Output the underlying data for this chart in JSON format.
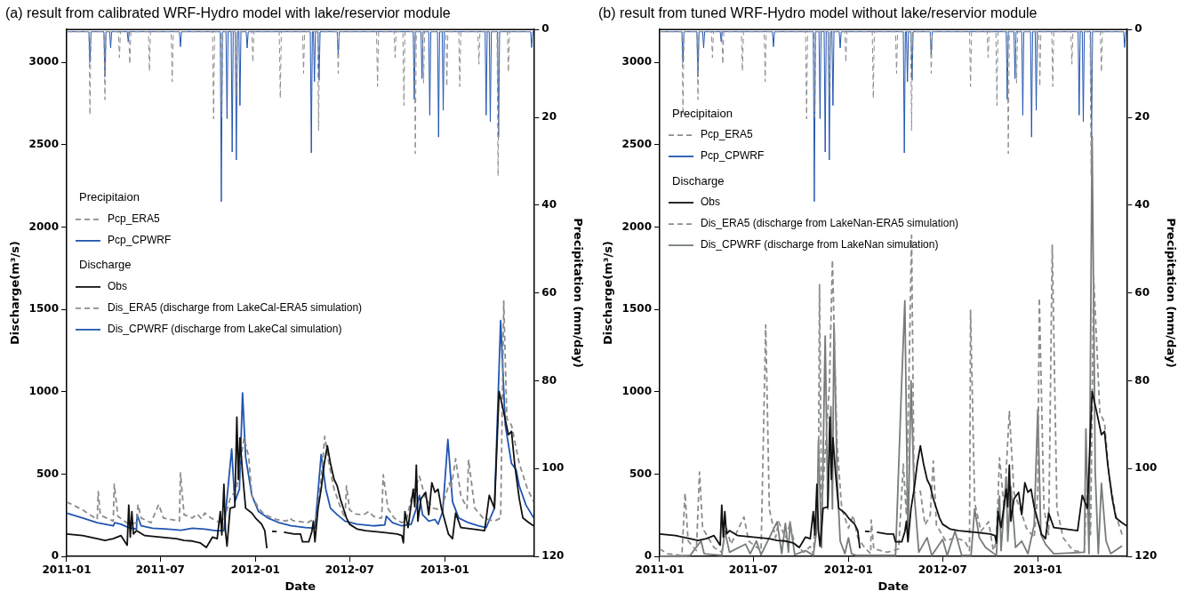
{
  "chart_data": [
    {
      "type": "line",
      "title": "(a) result from calibrated WRF-Hydro model with lake/reservior module",
      "xlabel": "Date",
      "ylabel": "Discharge(m³/s)",
      "y2label": "Precipitation (mm/day)",
      "legend": "left",
      "annotations": [
        "Precipitaion",
        "Discharge"
      ],
      "xlim": [
        "2011-01-01",
        "2013-06-22"
      ],
      "xticks": [
        "2011-01",
        "2011-07",
        "2012-01",
        "2012-07",
        "2013-01"
      ],
      "ylim": [
        0,
        3200
      ],
      "yticks": [
        0,
        500,
        1000,
        1500,
        2000,
        2500,
        3000
      ],
      "y2lim": [
        120,
        0
      ],
      "y2ticks": [
        0,
        20,
        40,
        60,
        80,
        100,
        120
      ],
      "series": [
        {
          "name": "Pcp_ERA5",
          "color": "#8c8c8c",
          "line_style": "dashed",
          "axis": "y2",
          "x": [
            "2011-01-01",
            "2011-02-13",
            "2011-02-15",
            "2011-02-17",
            "2011-03-14",
            "2011-03-16",
            "2011-03-18",
            "2011-04-11",
            "2011-04-13",
            "2011-04-15",
            "2011-05-01",
            "2011-05-03",
            "2011-05-05",
            "2011-06-08",
            "2011-06-10",
            "2011-06-12",
            "2011-07-22",
            "2011-07-24",
            "2011-07-26",
            "2011-10-10",
            "2011-10-12",
            "2011-10-14",
            "2011-10-26",
            "2011-10-28",
            "2011-10-30",
            "2011-11-23",
            "2011-11-25",
            "2011-11-27",
            "2011-12-25",
            "2011-12-27",
            "2011-12-29",
            "2012-02-16",
            "2012-02-18",
            "2012-02-20",
            "2012-04-01",
            "2012-04-03",
            "2012-04-05",
            "2012-04-30",
            "2012-05-02",
            "2012-05-04",
            "2012-06-07",
            "2012-06-09",
            "2012-06-11",
            "2012-08-22",
            "2012-08-24",
            "2012-08-26",
            "2012-09-25",
            "2012-09-27",
            "2012-09-29",
            "2012-10-12",
            "2012-10-14",
            "2012-10-16",
            "2012-11-03",
            "2012-11-05",
            "2012-11-07",
            "2012-11-19",
            "2012-11-21",
            "2012-11-23",
            "2013-01-03",
            "2013-01-05",
            "2013-01-07",
            "2013-01-28",
            "2013-01-30",
            "2013-02-01",
            "2013-03-06",
            "2013-03-08",
            "2013-03-10",
            "2013-04-12",
            "2013-04-14",
            "2013-04-16",
            "2013-05-02",
            "2013-05-04",
            "2013-05-06",
            "2013-06-22"
          ],
          "values": [
            0.5,
            0.5,
            19.5,
            0.5,
            0.5,
            16,
            0.5,
            0.5,
            6.4,
            0.5,
            0.5,
            7.9,
            0.5,
            0.5,
            9.5,
            0.5,
            0.5,
            11.9,
            0.5,
            0.5,
            20.4,
            0.5,
            0.5,
            20,
            0.5,
            0.5,
            15,
            0.5,
            0.5,
            7.5,
            0.5,
            0.5,
            15.7,
            0.5,
            0.5,
            10,
            0.5,
            0.5,
            23,
            0.5,
            0.5,
            10,
            0.5,
            0.5,
            13,
            0.5,
            0.5,
            6.4,
            0.5,
            0.5,
            17.3,
            0.5,
            0.5,
            28.3,
            0.5,
            0.5,
            12.2,
            0.5,
            0.5,
            13,
            0.5,
            0.5,
            13,
            0.5,
            0.5,
            7.9,
            0.5,
            0.5,
            33.4,
            0.5,
            0.5,
            9.7,
            0.5,
            0.5
          ]
        },
        {
          "name": "Pcp_CPWRF",
          "color": "#2155b0",
          "line_style": "solid",
          "axis": "y2",
          "x": [
            "2011-01-01",
            "2011-02-13",
            "2011-02-15",
            "2011-02-17",
            "2011-03-14",
            "2011-03-16",
            "2011-03-18",
            "2011-03-25",
            "2011-03-27",
            "2011-03-29",
            "2011-04-28",
            "2011-04-30",
            "2011-05-02",
            "2011-08-07",
            "2011-08-09",
            "2011-08-11",
            "2011-10-25",
            "2011-10-27",
            "2011-10-29",
            "2011-11-05",
            "2011-11-07",
            "2011-11-09",
            "2011-11-15",
            "2011-11-17",
            "2011-11-19",
            "2011-11-23",
            "2011-11-25",
            "2011-11-27",
            "2011-11-30",
            "2011-12-02",
            "2011-12-04",
            "2011-12-14",
            "2011-12-16",
            "2011-12-18",
            "2012-04-16",
            "2012-04-18",
            "2012-04-20",
            "2012-04-22",
            "2012-04-24",
            "2012-04-26",
            "2012-05-01",
            "2012-05-03",
            "2012-05-05",
            "2012-06-07",
            "2012-06-09",
            "2012-06-11",
            "2012-11-01",
            "2012-11-03",
            "2012-11-05",
            "2012-11-16",
            "2012-11-18",
            "2012-11-20",
            "2012-12-01",
            "2012-12-03",
            "2012-12-05",
            "2012-12-18",
            "2012-12-20",
            "2012-12-22",
            "2012-12-27",
            "2012-12-29",
            "2012-12-31",
            "2013-03-20",
            "2013-03-22",
            "2013-03-24",
            "2013-03-28",
            "2013-03-30",
            "2013-04-01",
            "2013-04-13",
            "2013-04-15",
            "2013-04-17",
            "2013-06-16",
            "2013-06-18",
            "2013-06-20",
            "2013-06-22"
          ],
          "values": [
            0.5,
            0.5,
            7.5,
            0.5,
            0.5,
            10.8,
            0.5,
            0.5,
            4.2,
            0.5,
            0.5,
            2.8,
            0.5,
            0.5,
            3.9,
            0.5,
            0.5,
            39.2,
            0.5,
            0.5,
            20.3,
            0.5,
            0.5,
            27.9,
            0.5,
            0.5,
            29.7,
            0.5,
            0.5,
            17.3,
            0.5,
            0.5,
            4.2,
            0.5,
            0.5,
            28.1,
            0.5,
            0.5,
            11.9,
            0.5,
            0.5,
            11.5,
            0.5,
            0.5,
            5.7,
            0.5,
            0.5,
            15.9,
            0.5,
            0.5,
            11.2,
            0.5,
            0.5,
            19.5,
            0.5,
            0.5,
            24.5,
            0.5,
            0.5,
            18.4,
            0.5,
            0.5,
            19.5,
            0.5,
            0.5,
            21,
            0.5,
            0.5,
            24.5,
            0.5,
            0.5,
            4.1,
            0.5,
            0.5
          ]
        },
        {
          "name": "Obs",
          "color": "#111111",
          "line_style": "solid",
          "axis": "y",
          "x": [
            "2011-01-01",
            "2011-02-01",
            "2011-03-01",
            "2011-03-16",
            "2011-04-01",
            "2011-04-16",
            "2011-04-28",
            "2011-05-01",
            "2011-05-04",
            "2011-05-07",
            "2011-05-10",
            "2011-05-16",
            "2011-06-01",
            "2011-07-01",
            "2011-08-01",
            "2011-08-16",
            "2011-09-01",
            "2011-09-16",
            "2011-09-28",
            "2011-10-10",
            "2011-10-19",
            "2011-10-25",
            "2011-10-28",
            "2011-11-01",
            "2011-11-04",
            "2011-11-07",
            "2011-11-13",
            "2011-11-22",
            "2011-11-26",
            "2011-11-29",
            "2011-12-02",
            "2011-12-07",
            "2011-12-13",
            "2011-12-25",
            "2012-01-01",
            "2012-01-13",
            "2012-01-19",
            "2012-01-23",
            "2012-02-01",
            "2012-02-02",
            "2012-02-11",
            "2012-02-15",
            "2012-02-25",
            "2012-03-16",
            "2012-03-28",
            "2012-04-01",
            "2012-04-13",
            "2012-04-19",
            "2012-04-22",
            "2012-04-25",
            "2012-05-01",
            "2012-05-07",
            "2012-05-13",
            "2012-05-19",
            "2012-05-25",
            "2012-06-01",
            "2012-06-07",
            "2012-06-13",
            "2012-06-19",
            "2012-06-25",
            "2012-07-01",
            "2012-07-16",
            "2012-08-01",
            "2012-09-01",
            "2012-10-01",
            "2012-10-10",
            "2012-10-13",
            "2012-10-16",
            "2012-10-22",
            "2012-11-01",
            "2012-11-04",
            "2012-11-07",
            "2012-11-10",
            "2012-11-16",
            "2012-11-25",
            "2012-12-01",
            "2012-12-07",
            "2012-12-13",
            "2012-12-19",
            "2012-12-25",
            "2013-01-08",
            "2013-01-16",
            "2013-01-22",
            "2013-02-01",
            "2013-02-25",
            "2013-03-19",
            "2013-03-28",
            "2013-04-07",
            "2013-04-16",
            "2013-04-25",
            "2013-05-04",
            "2013-05-10",
            "2013-05-16",
            "2013-05-25",
            "2013-06-01",
            "2013-06-13",
            "2013-06-22"
          ],
          "values": [
            136,
            126,
            107,
            97,
            107,
            126,
            68,
            311,
            117,
            272,
            136,
            156,
            126,
            117,
            107,
            97,
            93,
            82,
            54,
            117,
            107,
            272,
            130,
            438,
            150,
            62,
            292,
            300,
            846,
            467,
            720,
            506,
            292,
            263,
            233,
            195,
            156,
            49,
            null,
            152,
            150,
            null,
            146,
            136,
            136,
            88,
            88,
            150,
            214,
            88,
            292,
            408,
            564,
            671,
            564,
            467,
            428,
            350,
            292,
            233,
            195,
            165,
            156,
            146,
            136,
            126,
            82,
            272,
            175,
            408,
            300,
            554,
            214,
            350,
            389,
            253,
            447,
            389,
            408,
            300,
            136,
            107,
            263,
            175,
            165,
            156,
            370,
            292,
            1002,
            875,
            739,
            759,
            564,
            350,
            233,
            204,
            185
          ]
        },
        {
          "name": "Dis_ERA5 (discharge from LakeCal-ERA5 simulation)",
          "color": "#8c8c8c",
          "line_style": "dashed",
          "axis": "y",
          "x": [
            "2011-01-01",
            "2011-02-01",
            "2011-03-01",
            "2011-03-03",
            "2011-03-07",
            "2011-04-01",
            "2011-04-03",
            "2011-04-10",
            "2011-05-01",
            "2011-05-16",
            "2011-05-19",
            "2011-05-25",
            "2011-06-13",
            "2011-06-28",
            "2011-07-07",
            "2011-08-07",
            "2011-08-09",
            "2011-08-16",
            "2011-09-01",
            "2011-09-10",
            "2011-09-19",
            "2011-09-25",
            "2011-10-07",
            "2011-10-25",
            "2011-11-01",
            "2011-11-13",
            "2011-11-25",
            "2011-12-10",
            "2011-12-19",
            "2011-12-25",
            "2012-01-07",
            "2012-01-19",
            "2012-02-10",
            "2012-03-01",
            "2012-03-07",
            "2012-03-13",
            "2012-04-10",
            "2012-04-28",
            "2012-05-07",
            "2012-05-14",
            "2012-05-22",
            "2012-06-01",
            "2012-06-13",
            "2012-06-22",
            "2012-06-25",
            "2012-07-01",
            "2012-07-13",
            "2012-07-28",
            "2012-08-07",
            "2012-08-16",
            "2012-08-28",
            "2012-09-01",
            "2012-09-04",
            "2012-09-13",
            "2012-09-25",
            "2012-10-10",
            "2012-10-19",
            "2012-10-28",
            "2012-11-13",
            "2012-11-25",
            "2012-12-10",
            "2012-12-25",
            "2013-01-10",
            "2013-01-13",
            "2013-01-22",
            "2013-02-01",
            "2013-02-13",
            "2013-02-16",
            "2013-02-28",
            "2013-03-16",
            "2013-04-07",
            "2013-04-19",
            "2013-04-25",
            "2013-05-01",
            "2013-05-10",
            "2013-05-25",
            "2013-06-10",
            "2013-06-22"
          ],
          "values": [
            331,
            282,
            224,
            393,
            250,
            214,
            438,
            243,
            195,
            204,
            315,
            233,
            204,
            315,
            233,
            214,
            506,
            253,
            233,
            257,
            228,
            263,
            233,
            204,
            214,
            350,
            408,
            720,
            603,
            370,
            292,
            253,
            224,
            214,
            233,
            218,
            204,
            233,
            467,
            729,
            564,
            408,
            301,
            233,
            428,
            282,
            257,
            253,
            272,
            243,
            233,
            233,
            496,
            292,
            233,
            204,
            224,
            350,
            486,
            350,
            292,
            282,
            447,
            408,
            593,
            370,
            292,
            587,
            292,
            233,
            214,
            233,
            1551,
            836,
            797,
            564,
            408,
            331
          ]
        },
        {
          "name": "Dis_CPWRF (discharge from LakeCal simulation)",
          "color": "#2155b0",
          "line_style": "solid",
          "axis": "y",
          "x": [
            "2011-01-01",
            "2011-02-01",
            "2011-03-01",
            "2011-04-01",
            "2011-04-04",
            "2011-04-16",
            "2011-05-01",
            "2011-05-16",
            "2011-05-17",
            "2011-05-25",
            "2011-06-16",
            "2011-07-16",
            "2011-08-10",
            "2011-09-01",
            "2011-09-25",
            "2011-10-16",
            "2011-11-01",
            "2011-11-16",
            "2011-11-22",
            "2011-12-01",
            "2011-12-07",
            "2011-12-13",
            "2011-12-25",
            "2012-01-07",
            "2012-01-25",
            "2012-02-16",
            "2012-03-10",
            "2012-04-07",
            "2012-04-25",
            "2012-05-07",
            "2012-05-16",
            "2012-05-25",
            "2012-06-07",
            "2012-06-22",
            "2012-07-16",
            "2012-08-16",
            "2012-09-07",
            "2012-09-10",
            "2012-09-22",
            "2012-10-10",
            "2012-10-28",
            "2012-11-07",
            "2012-11-13",
            "2012-11-19",
            "2012-12-01",
            "2012-12-13",
            "2012-12-19",
            "2012-12-28",
            "2013-01-07",
            "2013-01-16",
            "2013-01-28",
            "2013-02-16",
            "2013-03-07",
            "2013-03-22",
            "2013-04-07",
            "2013-04-19",
            "2013-04-28",
            "2013-05-10",
            "2013-05-19",
            "2013-05-25",
            "2013-06-07",
            "2013-06-22"
          ],
          "values": [
            263,
            233,
            204,
            185,
            204,
            195,
            175,
            165,
            253,
            185,
            171,
            165,
            159,
            171,
            165,
            156,
            156,
            652,
            331,
            408,
            992,
            603,
            370,
            272,
            233,
            204,
            185,
            175,
            171,
            618,
            408,
            292,
            253,
            214,
            195,
            185,
            191,
            243,
            204,
            185,
            195,
            292,
            370,
            253,
            214,
            224,
            195,
            272,
            710,
            331,
            233,
            204,
            185,
            175,
            292,
            1432,
            797,
            564,
            525,
            428,
            311,
            233
          ]
        }
      ]
    },
    {
      "type": "line",
      "title": "(b) result from tuned WRF-Hydro model without lake/reservior module",
      "xlabel": "Date",
      "ylabel": "Discharge(m³/s)",
      "y2label": "Precipitation (mm/day)",
      "legend": "top left",
      "annotations": [
        "Precipitaion",
        "Discharge"
      ],
      "xlim": [
        "2011-01-01",
        "2013-06-22"
      ],
      "xticks": [
        "2011-01",
        "2011-07",
        "2012-01",
        "2012-07",
        "2013-01"
      ],
      "ylim": [
        0,
        3200
      ],
      "yticks": [
        0,
        500,
        1000,
        1500,
        2000,
        2500,
        3000
      ],
      "y2lim": [
        120,
        0
      ],
      "y2ticks": [
        0,
        20,
        40,
        60,
        80,
        100,
        120
      ],
      "series": [
        {
          "name": "Pcp_ERA5",
          "color": "#8c8c8c",
          "line_style": "dashed",
          "axis": "y2",
          "x": [
            "2011-01-01",
            "2011-02-13",
            "2011-02-15",
            "2011-02-17",
            "2011-03-14",
            "2011-03-16",
            "2011-03-18",
            "2011-04-11",
            "2011-04-13",
            "2011-04-15",
            "2011-05-01",
            "2011-05-03",
            "2011-05-05",
            "2011-06-08",
            "2011-06-10",
            "2011-06-12",
            "2011-07-22",
            "2011-07-24",
            "2011-07-26",
            "2011-10-10",
            "2011-10-12",
            "2011-10-14",
            "2011-10-26",
            "2011-10-28",
            "2011-10-30",
            "2011-11-23",
            "2011-11-25",
            "2011-11-27",
            "2011-12-25",
            "2011-12-27",
            "2011-12-29",
            "2012-02-16",
            "2012-02-18",
            "2012-02-20",
            "2012-04-01",
            "2012-04-03",
            "2012-04-05",
            "2012-04-30",
            "2012-05-02",
            "2012-05-04",
            "2012-06-07",
            "2012-06-09",
            "2012-06-11",
            "2012-08-22",
            "2012-08-24",
            "2012-08-26",
            "2012-09-25",
            "2012-09-27",
            "2012-09-29",
            "2012-10-12",
            "2012-10-14",
            "2012-10-16",
            "2012-11-03",
            "2012-11-05",
            "2012-11-07",
            "2012-11-19",
            "2012-11-21",
            "2012-11-23",
            "2013-01-03",
            "2013-01-05",
            "2013-01-07",
            "2013-01-28",
            "2013-01-30",
            "2013-02-01",
            "2013-03-06",
            "2013-03-08",
            "2013-03-10",
            "2013-04-12",
            "2013-04-14",
            "2013-04-16",
            "2013-05-02",
            "2013-05-04",
            "2013-05-06",
            "2013-06-22"
          ],
          "values": [
            0.5,
            0.5,
            19.5,
            0.5,
            0.5,
            16,
            0.5,
            0.5,
            6.4,
            0.5,
            0.5,
            7.9,
            0.5,
            0.5,
            9.5,
            0.5,
            0.5,
            11.9,
            0.5,
            0.5,
            20.4,
            0.5,
            0.5,
            20,
            0.5,
            0.5,
            15,
            0.5,
            0.5,
            7.5,
            0.5,
            0.5,
            15.7,
            0.5,
            0.5,
            10,
            0.5,
            0.5,
            23,
            0.5,
            0.5,
            10,
            0.5,
            0.5,
            13,
            0.5,
            0.5,
            6.4,
            0.5,
            0.5,
            17.3,
            0.5,
            0.5,
            28.3,
            0.5,
            0.5,
            12.2,
            0.5,
            0.5,
            13,
            0.5,
            0.5,
            13,
            0.5,
            0.5,
            7.9,
            0.5,
            0.5,
            33.4,
            0.5,
            0.5,
            9.7,
            0.5,
            0.5
          ]
        },
        {
          "name": "Pcp_CPWRF",
          "color": "#2155b0",
          "line_style": "solid",
          "axis": "y2",
          "x": [
            "2011-01-01",
            "2011-02-13",
            "2011-02-15",
            "2011-02-17",
            "2011-03-14",
            "2011-03-16",
            "2011-03-18",
            "2011-03-25",
            "2011-03-27",
            "2011-03-29",
            "2011-04-28",
            "2011-04-30",
            "2011-05-02",
            "2011-08-07",
            "2011-08-09",
            "2011-08-11",
            "2011-10-25",
            "2011-10-27",
            "2011-10-29",
            "2011-11-05",
            "2011-11-07",
            "2011-11-09",
            "2011-11-15",
            "2011-11-17",
            "2011-11-19",
            "2011-11-23",
            "2011-11-25",
            "2011-11-27",
            "2011-11-30",
            "2011-12-02",
            "2011-12-04",
            "2011-12-14",
            "2011-12-16",
            "2011-12-18",
            "2012-04-16",
            "2012-04-18",
            "2012-04-20",
            "2012-04-22",
            "2012-04-24",
            "2012-04-26",
            "2012-05-01",
            "2012-05-03",
            "2012-05-05",
            "2012-06-07",
            "2012-06-09",
            "2012-06-11",
            "2012-11-01",
            "2012-11-03",
            "2012-11-05",
            "2012-11-16",
            "2012-11-18",
            "2012-11-20",
            "2012-12-01",
            "2012-12-03",
            "2012-12-05",
            "2012-12-18",
            "2012-12-20",
            "2012-12-22",
            "2012-12-27",
            "2012-12-29",
            "2012-12-31",
            "2013-03-20",
            "2013-03-22",
            "2013-03-24",
            "2013-03-28",
            "2013-03-30",
            "2013-04-01",
            "2013-04-13",
            "2013-04-15",
            "2013-04-17",
            "2013-06-16",
            "2013-06-18",
            "2013-06-20",
            "2013-06-22"
          ],
          "values": [
            0.5,
            0.5,
            7.5,
            0.5,
            0.5,
            10.8,
            0.5,
            0.5,
            4.2,
            0.5,
            0.5,
            2.8,
            0.5,
            0.5,
            3.9,
            0.5,
            0.5,
            39.2,
            0.5,
            0.5,
            20.3,
            0.5,
            0.5,
            27.9,
            0.5,
            0.5,
            29.7,
            0.5,
            0.5,
            17.3,
            0.5,
            0.5,
            4.2,
            0.5,
            0.5,
            28.1,
            0.5,
            0.5,
            11.9,
            0.5,
            0.5,
            11.5,
            0.5,
            0.5,
            5.7,
            0.5,
            0.5,
            15.9,
            0.5,
            0.5,
            11.2,
            0.5,
            0.5,
            19.5,
            0.5,
            0.5,
            24.5,
            0.5,
            0.5,
            18.4,
            0.5,
            0.5,
            19.5,
            0.5,
            0.5,
            21,
            0.5,
            0.5,
            24.5,
            0.5,
            0.5,
            4.1,
            0.5,
            0.5
          ]
        },
        {
          "name": "Obs",
          "color": "#111111",
          "line_style": "solid",
          "axis": "y",
          "x": [
            "2011-01-01",
            "2011-02-01",
            "2011-03-01",
            "2011-03-16",
            "2011-04-01",
            "2011-04-16",
            "2011-04-28",
            "2011-05-01",
            "2011-05-04",
            "2011-05-07",
            "2011-05-10",
            "2011-05-16",
            "2011-06-01",
            "2011-07-01",
            "2011-08-01",
            "2011-08-16",
            "2011-09-01",
            "2011-09-16",
            "2011-09-28",
            "2011-10-10",
            "2011-10-19",
            "2011-10-25",
            "2011-10-28",
            "2011-11-01",
            "2011-11-04",
            "2011-11-07",
            "2011-11-13",
            "2011-11-22",
            "2011-11-26",
            "2011-11-29",
            "2011-12-02",
            "2011-12-07",
            "2011-12-13",
            "2011-12-25",
            "2012-01-01",
            "2012-01-13",
            "2012-01-19",
            "2012-01-23",
            "2012-02-01",
            "2012-02-02",
            "2012-02-11",
            "2012-02-15",
            "2012-02-25",
            "2012-03-16",
            "2012-03-28",
            "2012-04-01",
            "2012-04-13",
            "2012-04-19",
            "2012-04-22",
            "2012-04-25",
            "2012-05-01",
            "2012-05-07",
            "2012-05-13",
            "2012-05-19",
            "2012-05-25",
            "2012-06-01",
            "2012-06-07",
            "2012-06-13",
            "2012-06-19",
            "2012-06-25",
            "2012-07-01",
            "2012-07-16",
            "2012-08-01",
            "2012-09-01",
            "2012-10-01",
            "2012-10-10",
            "2012-10-13",
            "2012-10-16",
            "2012-10-22",
            "2012-11-01",
            "2012-11-04",
            "2012-11-07",
            "2012-11-10",
            "2012-11-16",
            "2012-11-25",
            "2012-12-01",
            "2012-12-07",
            "2012-12-13",
            "2012-12-19",
            "2012-12-25",
            "2013-01-08",
            "2013-01-16",
            "2013-01-22",
            "2013-02-01",
            "2013-02-25",
            "2013-03-19",
            "2013-03-28",
            "2013-04-07",
            "2013-04-16",
            "2013-04-25",
            "2013-05-04",
            "2013-05-10",
            "2013-05-16",
            "2013-05-25",
            "2013-06-01",
            "2013-06-13",
            "2013-06-22"
          ],
          "values": [
            136,
            126,
            107,
            97,
            107,
            126,
            68,
            311,
            117,
            272,
            136,
            156,
            126,
            117,
            107,
            97,
            93,
            82,
            54,
            117,
            107,
            272,
            130,
            438,
            150,
            62,
            292,
            300,
            846,
            467,
            720,
            506,
            292,
            263,
            233,
            195,
            156,
            49,
            null,
            152,
            150,
            null,
            146,
            136,
            136,
            88,
            88,
            150,
            214,
            88,
            292,
            408,
            564,
            671,
            564,
            467,
            428,
            350,
            292,
            233,
            195,
            165,
            156,
            146,
            136,
            126,
            82,
            272,
            175,
            408,
            300,
            554,
            214,
            350,
            389,
            253,
            447,
            389,
            408,
            300,
            136,
            107,
            263,
            175,
            165,
            156,
            370,
            292,
            1002,
            875,
            739,
            759,
            564,
            350,
            233,
            204,
            185
          ]
        },
        {
          "name": "Dis_ERA5 (discharge from LakeNan-ERA5 simulation)",
          "color": "#8c8c8c",
          "line_style": "dashed",
          "axis": "y",
          "x": [
            "2011-01-01",
            "2011-01-16",
            "2011-02-13",
            "2011-02-19",
            "2011-02-25",
            "2011-03-13",
            "2011-03-19",
            "2011-03-25",
            "2011-04-16",
            "2011-05-01",
            "2011-05-10",
            "2011-05-19",
            "2011-06-13",
            "2011-06-22",
            "2011-07-16",
            "2011-07-25",
            "2011-08-01",
            "2011-08-13",
            "2011-08-19",
            "2011-09-01",
            "2011-09-10",
            "2011-09-19",
            "2011-10-07",
            "2011-10-19",
            "2011-10-25",
            "2011-11-04",
            "2011-11-06",
            "2011-11-10",
            "2011-11-25",
            "2011-12-01",
            "2011-12-10",
            "2011-12-19",
            "2012-01-01",
            "2012-01-10",
            "2012-01-19",
            "2012-02-01",
            "2012-02-13",
            "2012-02-14",
            "2012-02-19",
            "2012-03-16",
            "2012-04-07",
            "2012-04-16",
            "2012-04-22",
            "2012-05-02",
            "2012-05-07",
            "2012-05-19",
            "2012-05-28",
            "2012-06-07",
            "2012-06-13",
            "2012-06-19",
            "2012-07-07",
            "2012-07-25",
            "2012-08-13",
            "2012-08-22",
            "2012-08-24",
            "2012-09-01",
            "2012-09-13",
            "2012-09-28",
            "2012-10-07",
            "2012-10-13",
            "2012-10-19",
            "2012-10-28",
            "2012-11-07",
            "2012-11-16",
            "2012-11-28",
            "2012-12-10",
            "2012-12-25",
            "2013-01-01",
            "2013-01-04",
            "2013-01-13",
            "2013-01-22",
            "2013-01-29",
            "2013-02-07",
            "2013-02-19",
            "2013-03-10",
            "2013-04-01",
            "2013-04-07",
            "2013-04-13",
            "2013-04-19",
            "2013-05-01",
            "2013-05-10",
            "2013-05-19",
            "2013-06-01",
            "2013-06-13"
          ],
          "values": [
            45,
            16,
            6,
            385,
            93,
            35,
            512,
            171,
            54,
            25,
            171,
            74,
            239,
            93,
            35,
            1406,
            288,
            113,
            210,
            113,
            200,
            74,
            25,
            60,
            16,
            482,
            1650,
            288,
            1027,
            1800,
            677,
            288,
            171,
            249,
            113,
            54,
            16,
            220,
            45,
            25,
            45,
            560,
            249,
            1950,
            385,
            395,
            191,
            249,
            580,
            191,
            93,
            113,
            93,
            35,
            1494,
            327,
            152,
            210,
            35,
            93,
            599,
            288,
            881,
            385,
            288,
            171,
            113,
            385,
            1570,
            288,
            132,
            1890,
            288,
            113,
            35,
            25,
            482,
            132,
            1700,
            871,
            813,
            482,
            249,
            132
          ]
        },
        {
          "name": "Dis_CPWRF (discharge from LakeNan simulation)",
          "color": "#767b7b",
          "line_style": "solid",
          "axis": "y",
          "x": [
            "2011-01-01",
            "2011-03-01",
            "2011-03-22",
            "2011-03-28",
            "2011-05-01",
            "2011-05-07",
            "2011-05-16",
            "2011-06-16",
            "2011-06-25",
            "2011-07-07",
            "2011-07-16",
            "2011-08-16",
            "2011-08-25",
            "2011-09-01",
            "2011-09-07",
            "2011-09-10",
            "2011-09-19",
            "2011-10-10",
            "2011-10-25",
            "2011-11-01",
            "2011-11-04",
            "2011-11-10",
            "2011-11-17",
            "2011-11-22",
            "2011-11-28",
            "2011-12-01",
            "2011-12-04",
            "2011-12-10",
            "2011-12-16",
            "2011-12-25",
            "2012-01-01",
            "2012-01-07",
            "2012-01-16",
            "2012-04-01",
            "2012-04-13",
            "2012-04-19",
            "2012-04-25",
            "2012-05-01",
            "2012-05-07",
            "2012-05-16",
            "2012-06-01",
            "2012-06-10",
            "2012-07-01",
            "2012-07-10",
            "2012-07-25",
            "2012-08-07",
            "2012-08-25",
            "2012-09-01",
            "2012-09-10",
            "2012-09-22",
            "2012-10-13",
            "2012-10-19",
            "2012-10-22",
            "2012-11-01",
            "2012-11-04",
            "2012-11-10",
            "2012-11-19",
            "2012-12-01",
            "2012-12-13",
            "2012-12-25",
            "2013-01-01",
            "2013-01-07",
            "2013-01-16",
            "2013-02-01",
            "2013-04-01",
            "2013-04-04",
            "2013-04-10",
            "2013-04-16",
            "2013-04-22",
            "2013-04-28",
            "2013-05-04",
            "2013-05-13",
            "2013-05-22",
            "2013-06-13"
          ],
          "values": [
            0,
            6,
            93,
            16,
            6,
            152,
            25,
            74,
            16,
            93,
            10,
            210,
            16,
            200,
            25,
            210,
            10,
            35,
            6,
            171,
            706,
            54,
            1338,
            288,
            910,
            288,
            1416,
            482,
            93,
            16,
            113,
            16,
            6,
            6,
            1066,
            1552,
            93,
            1066,
            385,
            25,
            113,
            6,
            103,
            6,
            152,
            6,
            6,
            288,
            113,
            54,
            6,
            366,
            35,
            482,
            93,
            424,
            54,
            93,
            16,
            191,
            891,
            132,
            74,
            16,
            25,
            774,
            16,
            2550,
            521,
            16,
            443,
            93,
            16,
            64
          ]
        }
      ]
    }
  ]
}
